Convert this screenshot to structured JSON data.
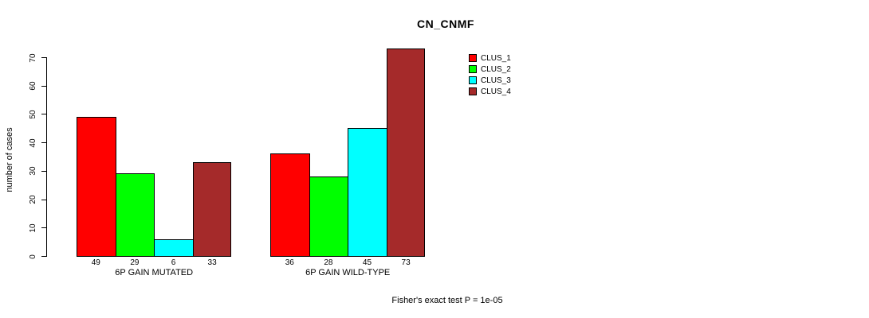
{
  "title": "CN_CNMF",
  "chart_data": {
    "type": "bar",
    "title": "CN_CNMF",
    "xlabel": "",
    "ylabel": "number of cases",
    "ylim": [
      0,
      70
    ],
    "yticks": [
      0,
      10,
      20,
      30,
      40,
      50,
      60,
      70
    ],
    "grid": false,
    "legend_position": "top-right",
    "bar_value_labels_shown": true,
    "categories": [
      "6P GAIN MUTATED",
      "6P GAIN WILD-TYPE"
    ],
    "groups": [
      {
        "label": "6P GAIN MUTATED",
        "values": [
          49,
          29,
          6,
          33
        ]
      },
      {
        "label": "6P GAIN WILD-TYPE",
        "values": [
          36,
          28,
          45,
          73
        ]
      }
    ],
    "series": [
      {
        "name": "CLUS_1",
        "color": "#FF0000"
      },
      {
        "name": "CLUS_2",
        "color": "#00FF00"
      },
      {
        "name": "CLUS_3",
        "color": "#00FFFF"
      },
      {
        "name": "CLUS_4",
        "color": "#A52A2A"
      }
    ]
  },
  "footer": {
    "text": "Fisher's exact test P = 1e-05"
  },
  "colors": {
    "background": "#FFFFFF",
    "axis": "#000000",
    "bar_border": "#000000"
  }
}
